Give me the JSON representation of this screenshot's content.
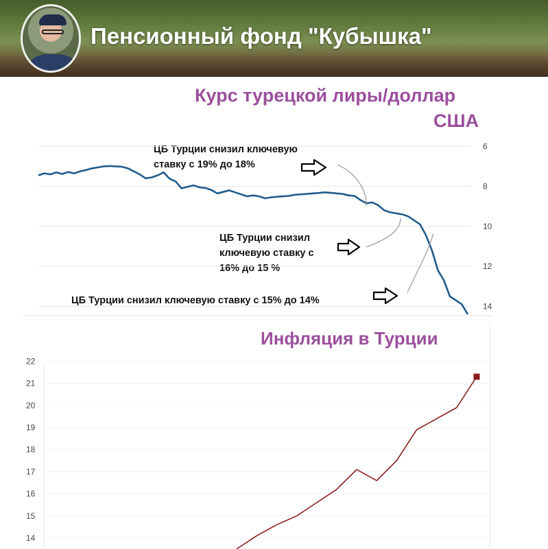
{
  "header": {
    "channel_title": "Пенсионный фонд \"Кубышка\""
  },
  "colors": {
    "title": "#9b4f9d",
    "lira_line": "#1f5b8c",
    "inflation_line": "#8b1c1c",
    "grid": "#e6e6e6"
  },
  "annotations": [
    {
      "text_lines": [
        "ЦБ Турции снизил ключевую",
        "ставку с 19% до 18%"
      ]
    },
    {
      "text_lines": [
        "ЦБ Турции снизил",
        "ключевую ставку с",
        "16% до 15 %"
      ]
    },
    {
      "text_lines": [
        "ЦБ Турции снизил ключевую ставку с 15% до 14%"
      ]
    }
  ],
  "chart_data": [
    {
      "type": "line",
      "title_lines": [
        "Курс турецкой лиры/доллар",
        "США"
      ],
      "y_ticks": [
        "6",
        "8",
        "10",
        "12",
        "14"
      ],
      "ylim": [
        5.2,
        14.4
      ],
      "y_inverted": true,
      "series": [
        {
          "values": [
            7.45,
            7.35,
            7.4,
            7.3,
            7.38,
            7.28,
            7.35,
            7.25,
            7.18,
            7.1,
            7.05,
            7.0,
            6.98,
            7.0,
            7.02,
            7.1,
            7.25,
            7.4,
            7.6,
            7.55,
            7.45,
            7.3,
            7.62,
            7.75,
            8.1,
            8.02,
            7.95,
            8.05,
            8.08,
            8.18,
            8.35,
            8.28,
            8.2,
            8.3,
            8.4,
            8.5,
            8.45,
            8.5,
            8.6,
            8.55,
            8.52,
            8.5,
            8.48,
            8.42,
            8.4,
            8.38,
            8.35,
            8.33,
            8.3,
            8.32,
            8.35,
            8.38,
            8.45,
            8.48,
            8.68,
            8.85,
            8.8,
            8.95,
            9.2,
            9.3,
            9.35,
            9.4,
            9.5,
            9.7,
            9.9,
            10.45,
            11.2,
            12.2,
            12.7,
            13.5,
            13.7,
            13.9,
            14.4
          ]
        }
      ]
    },
    {
      "type": "line",
      "title": "Инфляция в Турции",
      "y_ticks": [
        "14",
        "15",
        "16",
        "17",
        "18",
        "19",
        "20",
        "21",
        "22"
      ],
      "ylim": [
        13.6,
        22.2
      ],
      "series": [
        {
          "values": [
            13.6,
            14.1,
            14.6,
            15.0,
            15.6,
            16.2,
            17.1,
            16.6,
            17.5,
            18.9,
            19.4,
            19.9,
            21.3
          ]
        }
      ]
    }
  ]
}
